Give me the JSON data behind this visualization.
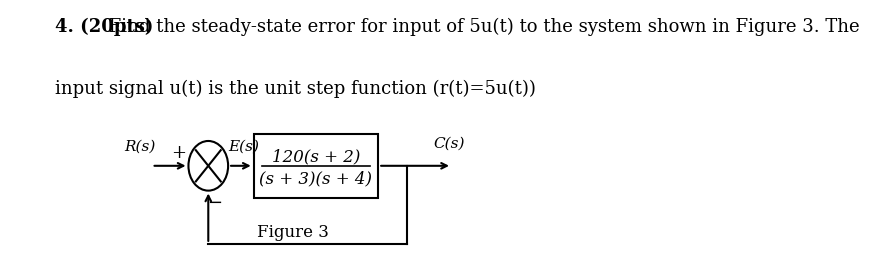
{
  "title_bold": "4. (20pts)",
  "title_regular": " Find the steady-state error for input of 5u(t) to the system shown in Figure 3. The",
  "line2": "input signal u(t) is the unit step function (r(t)=5u(t))",
  "figure_label": "Figure 3",
  "R_label": "R(s)",
  "plus_label": "+",
  "minus_label": "−",
  "E_label": "E(s)",
  "C_label": "C(s)",
  "tf_numerator": "120(s + 2)",
  "tf_denominator": "(s + 3)(s + 4)",
  "bg_color": "#ffffff",
  "text_color": "#000000",
  "box_color": "#000000",
  "line_color": "#000000",
  "font_size_main": 13,
  "font_size_diagram": 11,
  "fig_width": 8.05,
  "fig_height": 2.51
}
